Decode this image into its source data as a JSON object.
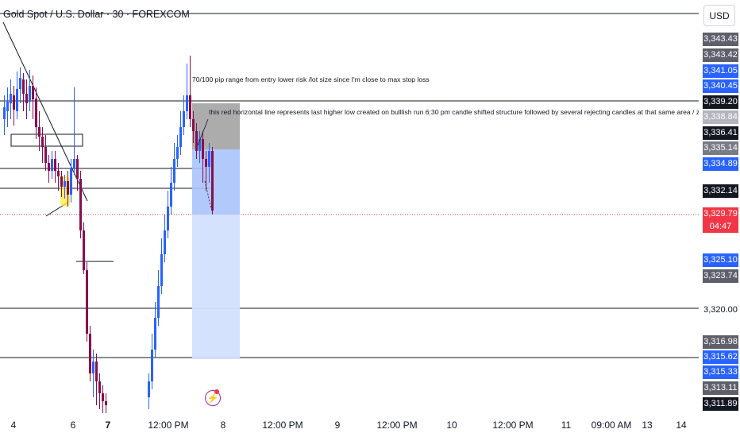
{
  "header": {
    "symbol": "Gold Spot / U.S. Dollar · 30 · FOREXCOM"
  },
  "currency": "USD",
  "notes": {
    "pip_range": "70/100 pip range from entry lower risk /lot size since I'm close to max stop loss",
    "red_line": "this red horizontal line represents last higher low created on bulllish run  6:30 pm candle shifted structure followed by several rejecting candles at that same area / zone"
  },
  "price_labels": [
    {
      "text": "3,343.43",
      "color": "#5d606b"
    },
    {
      "text": "3,343.42",
      "color": "#5d606b"
    },
    {
      "text": "3,341.05",
      "color": "#2962ff"
    },
    {
      "text": "3,340.45",
      "color": "#2962ff"
    },
    {
      "text": "3,339.20",
      "color": "#131722"
    },
    {
      "text": "3,338.84",
      "color": "#b2b5be"
    },
    {
      "text": "3,336.41",
      "color": "#131722"
    },
    {
      "text": "3,335.14",
      "color": "#787b86"
    },
    {
      "text": "3,334.89",
      "color": "#2962ff"
    },
    {
      "text": "3,332.14",
      "color": "#131722"
    },
    {
      "text": "3,329.79",
      "color": "#f23645"
    },
    {
      "text": "3,325.10",
      "color": "#2962ff"
    },
    {
      "text": "3,323.74",
      "color": "#5d606b"
    },
    {
      "text": "3,320.00",
      "color": ""
    },
    {
      "text": "3,316.98",
      "color": "#5d606b"
    },
    {
      "text": "3,315.62",
      "color": "#2962ff"
    },
    {
      "text": "3,315.33",
      "color": "#2962ff"
    },
    {
      "text": "3,313.11",
      "color": "#5d606b"
    },
    {
      "text": "3,311.89",
      "color": "#131722"
    }
  ],
  "countdown": "04:47",
  "time_labels": [
    {
      "text": "4",
      "bold": false
    },
    {
      "text": "6",
      "bold": false
    },
    {
      "text": "7",
      "bold": true
    },
    {
      "text": "12:00 PM",
      "bold": false
    },
    {
      "text": "8",
      "bold": false
    },
    {
      "text": "12:00 PM",
      "bold": false
    },
    {
      "text": "9",
      "bold": false
    },
    {
      "text": "12:00 PM",
      "bold": false
    },
    {
      "text": "10",
      "bold": false
    },
    {
      "text": "12:00 PM",
      "bold": false
    },
    {
      "text": "11",
      "bold": false
    },
    {
      "text": "09:00 AM",
      "bold": false
    },
    {
      "text": "13",
      "bold": false
    },
    {
      "text": "14",
      "bold": false
    }
  ],
  "colors": {
    "up_candle": "#2962ff",
    "down_candle": "#880e4f",
    "price_line": "#f23645",
    "stop_zone": "#9e9e9e",
    "target_zone": "#bbd0fb",
    "highlight": "#ffeb3b"
  }
}
